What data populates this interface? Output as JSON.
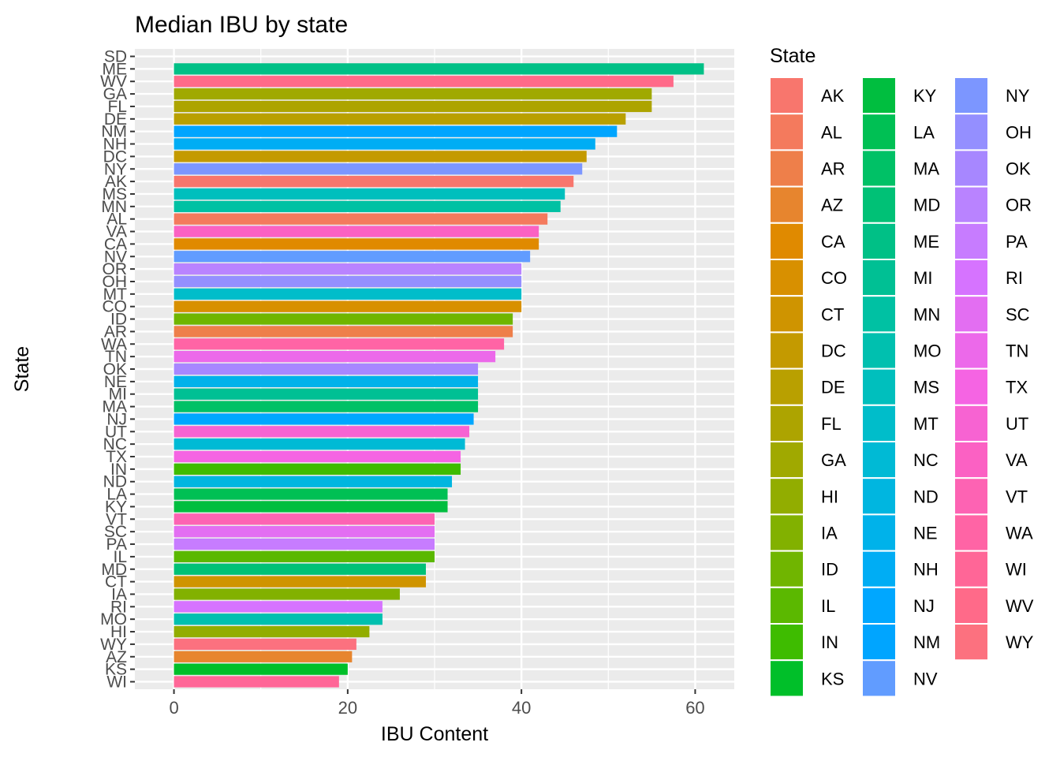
{
  "chart_data": {
    "type": "bar",
    "orientation": "horizontal",
    "title": "Median IBU by state",
    "xlabel": "IBU Content",
    "ylabel": "State",
    "xlim": [
      -4.5,
      64.5
    ],
    "x_ticks": [
      0,
      20,
      40,
      60
    ],
    "grid": true,
    "legend": {
      "title": "State",
      "position": "right",
      "columns": 3
    },
    "categories": [
      "SD",
      "ME",
      "WV",
      "GA",
      "FL",
      "DE",
      "NM",
      "NH",
      "DC",
      "NY",
      "AK",
      "MS",
      "MN",
      "AL",
      "VA",
      "CA",
      "NV",
      "OR",
      "OH",
      "MT",
      "CO",
      "ID",
      "AR",
      "WA",
      "TN",
      "OK",
      "NE",
      "MI",
      "MA",
      "NJ",
      "UT",
      "NC",
      "TX",
      "IN",
      "ND",
      "LA",
      "KY",
      "VT",
      "SC",
      "PA",
      "IL",
      "MD",
      "CT",
      "IA",
      "RI",
      "MO",
      "HI",
      "WY",
      "AZ",
      "KS",
      "WI"
    ],
    "values": [
      null,
      61,
      57.5,
      55,
      55,
      52,
      51,
      48.5,
      47.5,
      47,
      46,
      45,
      44.5,
      43,
      42,
      42,
      41,
      40,
      40,
      40,
      40,
      39,
      39,
      38,
      37,
      35,
      35,
      35,
      35,
      34.5,
      34,
      33.5,
      33,
      33,
      32,
      31.5,
      31.5,
      30,
      30,
      30,
      30,
      29,
      29,
      26,
      24,
      24,
      22.5,
      21,
      20.5,
      20,
      19
    ],
    "states_legend": [
      "AK",
      "AL",
      "AR",
      "AZ",
      "CA",
      "CO",
      "CT",
      "DC",
      "DE",
      "FL",
      "GA",
      "HI",
      "IA",
      "ID",
      "IL",
      "IN",
      "KS",
      "KY",
      "LA",
      "MA",
      "MD",
      "ME",
      "MI",
      "MN",
      "MO",
      "MS",
      "MT",
      "NC",
      "ND",
      "NE",
      "NH",
      "NJ",
      "NM",
      "NV",
      "NY",
      "OH",
      "OK",
      "OR",
      "PA",
      "RI",
      "SC",
      "TN",
      "TX",
      "UT",
      "VA",
      "VT",
      "WA",
      "WI",
      "WV",
      "WY"
    ],
    "colors": {
      "AK": "#F8766D",
      "AL": "#F47A5D",
      "AR": "#EE7F4A",
      "AZ": "#E7852E",
      "CA": "#E08A00",
      "CO": "#D89000",
      "CT": "#CF9400",
      "DC": "#C49A00",
      "DE": "#B9A000",
      "FL": "#ADA400",
      "GA": "#A0A900",
      "HI": "#92AD00",
      "IA": "#82B100",
      "ID": "#70B500",
      "IL": "#5BB800",
      "IN": "#3EBC00",
      "KS": "#00BF29",
      "KY": "#00BE3F",
      "LA": "#00C054",
      "MA": "#00C166",
      "MD": "#00C176",
      "ME": "#00C086",
      "MI": "#00C094",
      "MN": "#00C1A3",
      "MO": "#00C0AF",
      "MS": "#00BFBD",
      "MT": "#00BDCA",
      "NC": "#00BAD5",
      "ND": "#00B6E0",
      "NE": "#00B2EA",
      "NH": "#00ADF4",
      "NJ": "#00A7FF",
      "NM": "#00A5FF",
      "NV": "#619CFF",
      "NY": "#7C96FF",
      "OH": "#948FFF",
      "OK": "#A787FF",
      "OR": "#B983FF",
      "PA": "#C77CFF",
      "RI": "#D673FF",
      "SC": "#E36EF2",
      "TN": "#EC69EA",
      "TX": "#F564E3",
      "UT": "#F763D2",
      "VA": "#FB61C3",
      "VT": "#FD63B3",
      "WA": "#FF64A5",
      "WI": "#FF6697",
      "WV": "#FF6A89",
      "WY": "#FC717F"
    },
    "panel_background": "#EBEBEB",
    "grid_color": "#FFFFFF"
  }
}
